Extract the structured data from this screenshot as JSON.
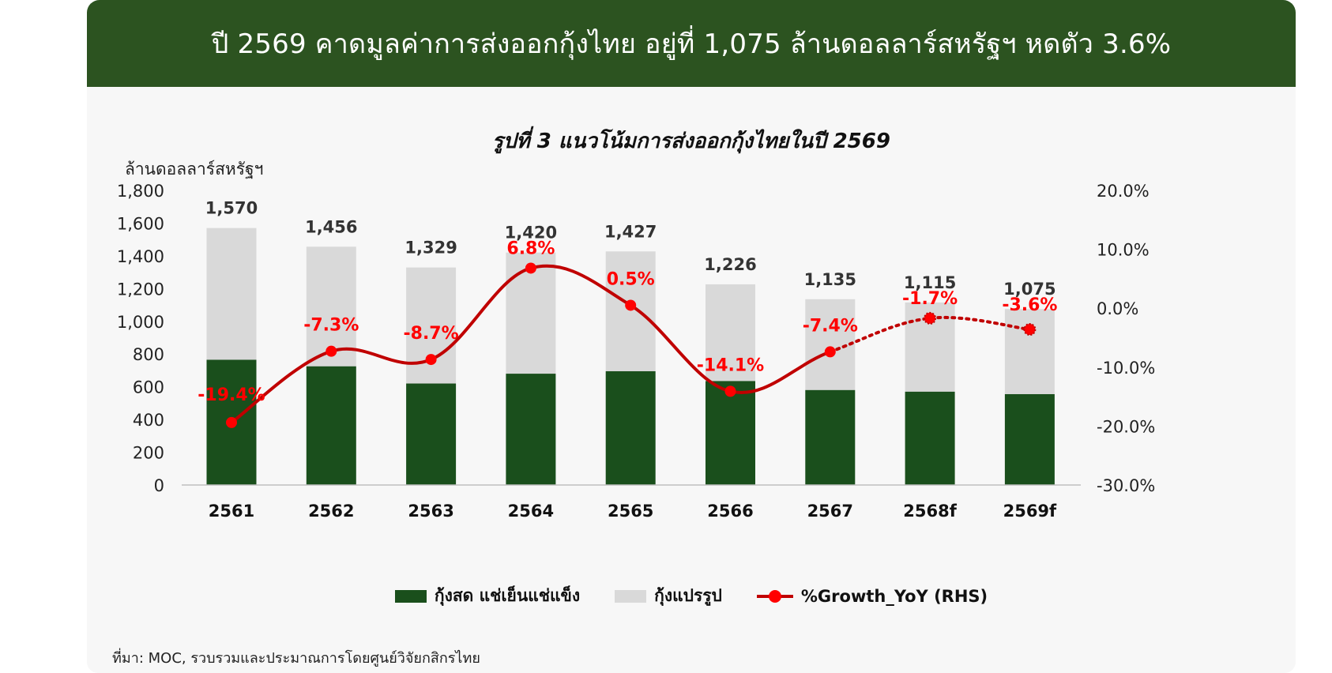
{
  "banner": {
    "title": "ปี 2569 คาดมูลค่าการส่งออกกุ้งไทย อยู่ที่ 1,075 ล้านดอลลาร์สหรัฐฯ หดตัว 3.6%"
  },
  "source": "ที่มา: MOC, รวบรวมและประมาณการโดยศูนย์วิจัยกสิกรไทย",
  "chart_data": {
    "type": "bar",
    "stacked": true,
    "title": "รูปที่ 3 แนวโน้มการส่งออกกุ้งไทยในปี 2569",
    "ylabel": "ล้านดอลลาร์สหรัฐฯ",
    "ylim": [
      0,
      1800
    ],
    "y_ticks": [
      "1,800",
      "1,600",
      "1,400",
      "1,200",
      "1,000",
      "800",
      "600",
      "400",
      "200",
      "0"
    ],
    "y_tick_values": [
      1800,
      1600,
      1400,
      1200,
      1000,
      800,
      600,
      400,
      200,
      0
    ],
    "y2lim": [
      -30,
      20
    ],
    "y2_ticks": [
      "20.0%",
      "10.0%",
      "0.0%",
      "-10.0%",
      "-20.0%",
      "-30.0%"
    ],
    "y2_tick_values": [
      20,
      10,
      0,
      -10,
      -20,
      -30
    ],
    "categories": [
      "2561",
      "2562",
      "2563",
      "2564",
      "2565",
      "2566",
      "2567",
      "2568f",
      "2569f"
    ],
    "totals": [
      1570,
      1456,
      1329,
      1420,
      1427,
      1226,
      1135,
      1115,
      1075
    ],
    "total_labels": [
      "1,570",
      "1,456",
      "1,329",
      "1,420",
      "1,427",
      "1,226",
      "1,135",
      "1,115",
      "1,075"
    ],
    "series": [
      {
        "name": "กุ้งสด แช่เย็นแช่แข็ง",
        "color": "#1a4f1c",
        "values": [
          765,
          725,
          620,
          680,
          695,
          635,
          580,
          570,
          555
        ]
      },
      {
        "name": "กุ้งแปรรูป",
        "color": "#d9d9d9",
        "values": [
          805,
          731,
          709,
          740,
          732,
          591,
          555,
          545,
          520
        ]
      },
      {
        "name": "%Growth_YoY (RHS)",
        "color": "#c00000",
        "axis": "right",
        "values": [
          -19.4,
          -7.3,
          -8.7,
          6.8,
          0.5,
          -14.1,
          -7.4,
          -1.7,
          -3.6
        ],
        "labels": [
          "-19.4%",
          "-7.3%",
          "-8.7%",
          "6.8%",
          "0.5%",
          "-14.1%",
          "-7.4%",
          "-1.7%",
          "-3.6%"
        ],
        "forecast_from_index": 6
      }
    ],
    "legend": "bottom",
    "grid": false
  }
}
